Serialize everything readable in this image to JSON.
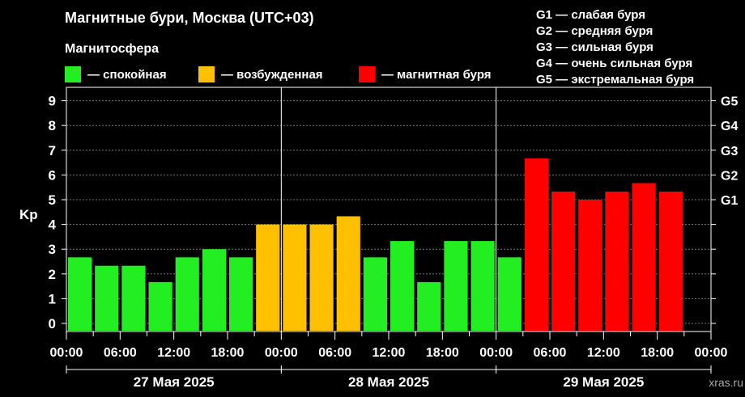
{
  "header": {
    "title": "Магнитные бури, Москва (UTC+03)",
    "subtitle": "Магнитосфера"
  },
  "legend": [
    {
      "label": "— спокойная",
      "color": "#22ee22"
    },
    {
      "label": "— возбужденная",
      "color": "#ffc000"
    },
    {
      "label": "— магнитная буря",
      "color": "#ff0000"
    }
  ],
  "g_legend": [
    "G1 — слабая буря",
    "G2 — средняя буря",
    "G3 — сильная буря",
    "G4 — очень сильная буря",
    "G5 — экстремальная буря"
  ],
  "credit": "xras.ru",
  "chart_data": {
    "type": "bar",
    "ylabel": "Kp",
    "ylim": [
      0,
      9
    ],
    "yticks": [
      "0",
      "1",
      "2",
      "3",
      "4",
      "5",
      "6",
      "7",
      "8",
      "9"
    ],
    "g_levels": [
      {
        "label": "G1",
        "kp": 5
      },
      {
        "label": "G2",
        "kp": 6
      },
      {
        "label": "G3",
        "kp": 7
      },
      {
        "label": "G4",
        "kp": 8
      },
      {
        "label": "G5",
        "kp": 9
      }
    ],
    "xtick_labels": [
      "00:00",
      "06:00",
      "12:00",
      "18:00",
      "00:00",
      "06:00",
      "12:00",
      "18:00",
      "00:00",
      "06:00",
      "12:00",
      "18:00",
      "00:00"
    ],
    "days": [
      "27 Мая 2025",
      "28 Мая 2025",
      "29 Мая 2025"
    ],
    "values": [
      2.67,
      2.33,
      2.33,
      1.67,
      2.67,
      3.0,
      2.67,
      4.0,
      4.0,
      4.0,
      4.33,
      2.67,
      3.33,
      1.67,
      3.33,
      3.33,
      2.67,
      6.67,
      5.33,
      5.0,
      5.33,
      5.67,
      5.33
    ],
    "colors": [
      "#22ee22",
      "#22ee22",
      "#22ee22",
      "#22ee22",
      "#22ee22",
      "#22ee22",
      "#22ee22",
      "#ffc000",
      "#ffc000",
      "#ffc000",
      "#ffc000",
      "#22ee22",
      "#22ee22",
      "#22ee22",
      "#22ee22",
      "#22ee22",
      "#22ee22",
      "#ff0000",
      "#ff0000",
      "#ff0000",
      "#ff0000",
      "#ff0000",
      "#ff0000"
    ],
    "grid": true
  }
}
